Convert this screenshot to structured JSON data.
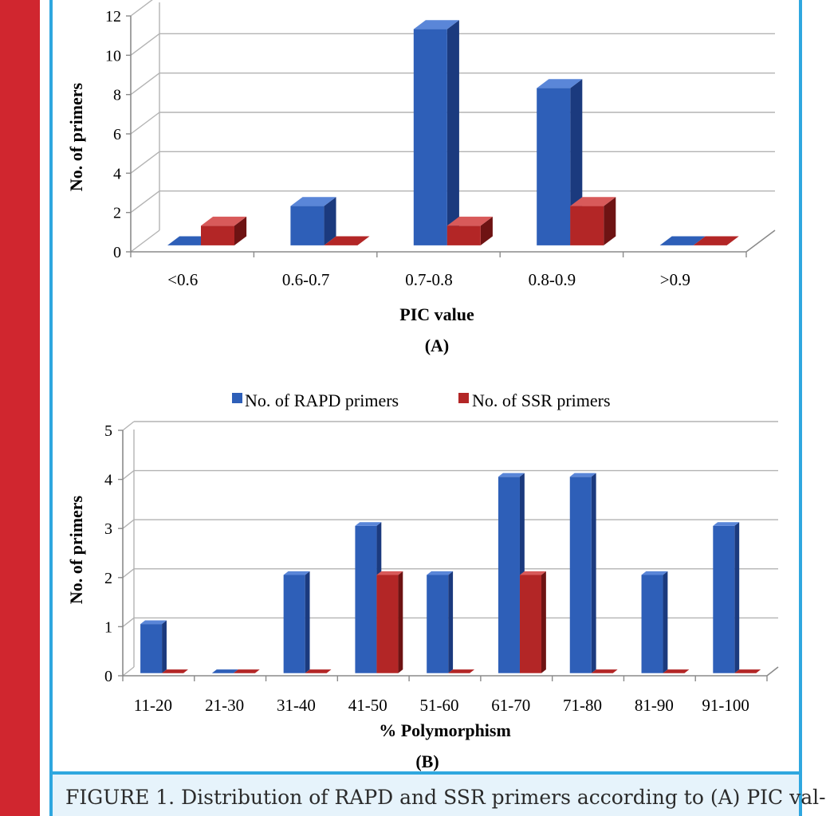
{
  "caption": "FIGURE 1. Distribution of RAPD and SSR primers according to (A) PIC val-",
  "colors": {
    "rapd_front": "#2e5fb8",
    "rapd_top": "#5a86d8",
    "rapd_side": "#1b3a7e",
    "ssr_front": "#b32626",
    "ssr_top": "#d85a5a",
    "ssr_side": "#6e1313",
    "grid": "#b3b3b3",
    "axis": "#8a8a8a",
    "frame": "#2fa7df",
    "sidebar": "#d0262f"
  },
  "chart_data": [
    {
      "type": "bar",
      "panel_label": "(A)",
      "xlabel": "PIC value",
      "ylabel": "No. of primers",
      "categories": [
        "<0.6",
        "0.6-0.7",
        "0.7-0.8",
        "0.8-0.9",
        ">0.9"
      ],
      "series": [
        {
          "name": "No. of RAPD primers",
          "values": [
            0,
            2,
            11,
            8,
            0
          ]
        },
        {
          "name": "No. of SSR primers",
          "values": [
            1,
            0,
            1,
            2,
            0
          ]
        }
      ],
      "ylim": [
        0,
        12
      ],
      "yticks": [
        "0",
        "2",
        "4",
        "6",
        "8",
        "10",
        "12"
      ],
      "grid": true,
      "legend": "none"
    },
    {
      "type": "bar",
      "panel_label": "(B)",
      "xlabel": "% Polymorphism",
      "ylabel": "No. of primers",
      "categories": [
        "11-20",
        "21-30",
        "31-40",
        "41-50",
        "51-60",
        "61-70",
        "71-80",
        "81-90",
        "91-100"
      ],
      "series": [
        {
          "name": "No. of RAPD primers",
          "values": [
            1,
            0,
            2,
            3,
            2,
            4,
            4,
            2,
            3
          ]
        },
        {
          "name": "No. of SSR primers",
          "values": [
            0,
            0,
            0,
            2,
            0,
            2,
            0,
            0,
            0
          ]
        }
      ],
      "ylim": [
        0,
        5
      ],
      "yticks": [
        "0",
        "1",
        "2",
        "3",
        "4",
        "5"
      ],
      "grid": true,
      "legend": "top"
    }
  ]
}
